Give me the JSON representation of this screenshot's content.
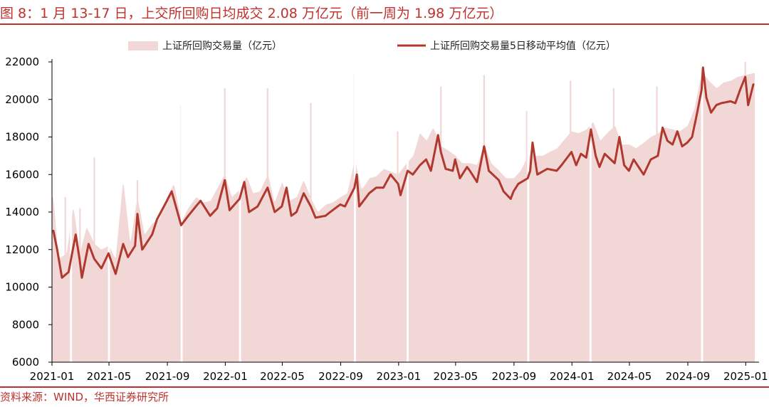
{
  "figure_title": "图 8：1 月 13-17 日，上交所回购日均成交 2.08 万亿元（前一周为 1.98 万亿元）",
  "source_note": "资料来源：WIND，华西证券研究所",
  "colors": {
    "bars": "#f2d7d7",
    "line": "#b0392f",
    "accent": "#c0312d"
  },
  "chart_data": {
    "type": "bar+line",
    "title": "",
    "xlabel": "",
    "ylabel": "",
    "ylim": [
      6000,
      22000
    ],
    "yticks": [
      "6000",
      "8000",
      "10000",
      "12000",
      "14000",
      "16000",
      "18000",
      "20000",
      "22000"
    ],
    "xlim": [
      "2021-01",
      "2025-01-17"
    ],
    "xticks": [
      "2021-01",
      "2021-05",
      "2021-09",
      "2022-01",
      "2022-05",
      "2022-09",
      "2023-01",
      "2023-05",
      "2023-09",
      "2024-01",
      "2024-05",
      "2024-09",
      "2025-01"
    ],
    "legend": {
      "placement": "top",
      "items": [
        "上证所回购交易量（亿元）",
        "上证所回购交易量5日移动平均值（亿元）"
      ]
    },
    "series": [
      {
        "name": "上证所回购交易量5日移动平均值（亿元）",
        "kind": "line",
        "points": [
          [
            "2021-01-04",
            13000
          ],
          [
            "2021-01-12",
            12000
          ],
          [
            "2021-01-22",
            10500
          ],
          [
            "2021-02-05",
            10800
          ],
          [
            "2021-02-20",
            12800
          ],
          [
            "2021-02-28",
            11500
          ],
          [
            "2021-03-05",
            10500
          ],
          [
            "2021-03-19",
            12300
          ],
          [
            "2021-03-31",
            11500
          ],
          [
            "2021-04-15",
            11000
          ],
          [
            "2021-04-30",
            11800
          ],
          [
            "2021-05-15",
            10700
          ],
          [
            "2021-05-31",
            12300
          ],
          [
            "2021-06-10",
            11600
          ],
          [
            "2021-06-25",
            12200
          ],
          [
            "2021-06-30",
            13900
          ],
          [
            "2021-07-10",
            12000
          ],
          [
            "2021-07-31",
            12800
          ],
          [
            "2021-08-10",
            13600
          ],
          [
            "2021-08-31",
            14600
          ],
          [
            "2021-09-10",
            15100
          ],
          [
            "2021-09-30",
            13300
          ],
          [
            "2021-10-15",
            13800
          ],
          [
            "2021-10-31",
            14300
          ],
          [
            "2021-11-10",
            14600
          ],
          [
            "2021-11-30",
            13800
          ],
          [
            "2021-12-15",
            14200
          ],
          [
            "2021-12-31",
            15700
          ],
          [
            "2022-01-10",
            14100
          ],
          [
            "2022-01-31",
            14700
          ],
          [
            "2022-02-10",
            15600
          ],
          [
            "2022-02-20",
            14000
          ],
          [
            "2022-03-10",
            14300
          ],
          [
            "2022-03-31",
            15300
          ],
          [
            "2022-04-15",
            14000
          ],
          [
            "2022-04-30",
            14300
          ],
          [
            "2022-05-10",
            15300
          ],
          [
            "2022-05-20",
            13800
          ],
          [
            "2022-05-31",
            14000
          ],
          [
            "2022-06-15",
            15000
          ],
          [
            "2022-06-30",
            14300
          ],
          [
            "2022-07-10",
            13700
          ],
          [
            "2022-07-31",
            13800
          ],
          [
            "2022-08-10",
            14000
          ],
          [
            "2022-08-31",
            14400
          ],
          [
            "2022-09-10",
            14300
          ],
          [
            "2022-09-30",
            15300
          ],
          [
            "2022-10-05",
            16000
          ],
          [
            "2022-10-10",
            14300
          ],
          [
            "2022-10-31",
            15000
          ],
          [
            "2022-11-15",
            15300
          ],
          [
            "2022-11-30",
            15300
          ],
          [
            "2022-12-15",
            16000
          ],
          [
            "2022-12-31",
            15500
          ],
          [
            "2023-01-05",
            14900
          ],
          [
            "2023-01-20",
            16200
          ],
          [
            "2023-01-31",
            16000
          ],
          [
            "2023-02-15",
            16500
          ],
          [
            "2023-02-28",
            16800
          ],
          [
            "2023-03-10",
            16200
          ],
          [
            "2023-03-25",
            18100
          ],
          [
            "2023-03-31",
            17200
          ],
          [
            "2023-04-10",
            16300
          ],
          [
            "2023-04-25",
            16200
          ],
          [
            "2023-04-30",
            16800
          ],
          [
            "2023-05-10",
            15800
          ],
          [
            "2023-05-25",
            16400
          ],
          [
            "2023-05-31",
            16200
          ],
          [
            "2023-06-15",
            15600
          ],
          [
            "2023-06-30",
            17500
          ],
          [
            "2023-07-10",
            16200
          ],
          [
            "2023-07-31",
            15700
          ],
          [
            "2023-08-10",
            15100
          ],
          [
            "2023-08-25",
            14700
          ],
          [
            "2023-08-31",
            15100
          ],
          [
            "2023-09-10",
            15500
          ],
          [
            "2023-09-30",
            15800
          ],
          [
            "2023-10-05",
            16200
          ],
          [
            "2023-10-10",
            17700
          ],
          [
            "2023-10-20",
            16000
          ],
          [
            "2023-11-10",
            16300
          ],
          [
            "2023-11-30",
            16200
          ],
          [
            "2023-12-10",
            16500
          ],
          [
            "2023-12-31",
            17200
          ],
          [
            "2024-01-10",
            16500
          ],
          [
            "2024-01-20",
            17100
          ],
          [
            "2024-01-31",
            16900
          ],
          [
            "2024-02-10",
            18400
          ],
          [
            "2024-02-20",
            17000
          ],
          [
            "2024-02-28",
            16400
          ],
          [
            "2024-03-10",
            17100
          ],
          [
            "2024-03-31",
            16600
          ],
          [
            "2024-04-10",
            18000
          ],
          [
            "2024-04-20",
            16500
          ],
          [
            "2024-04-30",
            16200
          ],
          [
            "2024-05-10",
            16800
          ],
          [
            "2024-05-31",
            16000
          ],
          [
            "2024-06-15",
            16800
          ],
          [
            "2024-06-30",
            17000
          ],
          [
            "2024-07-10",
            18500
          ],
          [
            "2024-07-20",
            17800
          ],
          [
            "2024-07-31",
            17600
          ],
          [
            "2024-08-10",
            18300
          ],
          [
            "2024-08-20",
            17500
          ],
          [
            "2024-08-31",
            17700
          ],
          [
            "2024-09-10",
            18000
          ],
          [
            "2024-09-20",
            19200
          ],
          [
            "2024-09-30",
            20500
          ],
          [
            "2024-10-03",
            21700
          ],
          [
            "2024-10-10",
            20100
          ],
          [
            "2024-10-20",
            19300
          ],
          [
            "2024-10-31",
            19700
          ],
          [
            "2024-11-10",
            19800
          ],
          [
            "2024-11-30",
            19900
          ],
          [
            "2024-12-10",
            19800
          ],
          [
            "2024-12-20",
            20500
          ],
          [
            "2024-12-31",
            21200
          ],
          [
            "2025-01-06",
            19700
          ],
          [
            "2025-01-12",
            20300
          ],
          [
            "2025-01-17",
            20800
          ]
        ]
      },
      {
        "name": "上证所回购交易量（亿元）",
        "kind": "bar",
        "note": "daily trading volume; envelope approximates the plotted daily bars",
        "points": [
          [
            "2021-01-04",
            14800
          ],
          [
            "2021-01-15",
            11500
          ],
          [
            "2021-02-01",
            11800
          ],
          [
            "2021-02-15",
            14300
          ],
          [
            "2021-03-01",
            11800
          ],
          [
            "2021-03-15",
            13200
          ],
          [
            "2021-04-01",
            12300
          ],
          [
            "2021-04-15",
            12000
          ],
          [
            "2021-05-01",
            12200
          ],
          [
            "2021-05-15",
            11500
          ],
          [
            "2021-05-31",
            15700
          ],
          [
            "2021-06-15",
            12300
          ],
          [
            "2021-06-30",
            14800
          ],
          [
            "2021-07-15",
            12800
          ],
          [
            "2021-08-01",
            13400
          ],
          [
            "2021-08-15",
            13600
          ],
          [
            "2021-09-01",
            14800
          ],
          [
            "2021-09-15",
            15500
          ],
          [
            "2021-10-01",
            13500
          ],
          [
            "2021-10-15",
            14200
          ],
          [
            "2021-11-01",
            14800
          ],
          [
            "2021-11-15",
            14500
          ],
          [
            "2021-12-01",
            14600
          ],
          [
            "2021-12-31",
            16000
          ],
          [
            "2022-01-15",
            14800
          ],
          [
            "2022-02-01",
            15200
          ],
          [
            "2022-02-15",
            15900
          ],
          [
            "2022-03-01",
            15000
          ],
          [
            "2022-03-15",
            15100
          ],
          [
            "2022-04-01",
            16000
          ],
          [
            "2022-04-15",
            14500
          ],
          [
            "2022-05-01",
            15600
          ],
          [
            "2022-05-15",
            14600
          ],
          [
            "2022-06-01",
            14800
          ],
          [
            "2022-06-15",
            15700
          ],
          [
            "2022-07-01",
            14700
          ],
          [
            "2022-07-15",
            14000
          ],
          [
            "2022-08-01",
            14400
          ],
          [
            "2022-08-15",
            14500
          ],
          [
            "2022-09-01",
            14800
          ],
          [
            "2022-09-15",
            15000
          ],
          [
            "2022-10-01",
            16800
          ],
          [
            "2022-10-15",
            15200
          ],
          [
            "2022-11-01",
            15800
          ],
          [
            "2022-11-15",
            15900
          ],
          [
            "2022-12-01",
            16300
          ],
          [
            "2022-12-31",
            16000
          ],
          [
            "2023-01-15",
            16500
          ],
          [
            "2023-02-01",
            17000
          ],
          [
            "2023-02-15",
            18200
          ],
          [
            "2023-03-01",
            17800
          ],
          [
            "2023-03-15",
            18500
          ],
          [
            "2023-04-01",
            17500
          ],
          [
            "2023-04-15",
            17300
          ],
          [
            "2023-05-01",
            17000
          ],
          [
            "2023-05-15",
            16600
          ],
          [
            "2023-06-01",
            16600
          ],
          [
            "2023-06-15",
            16500
          ],
          [
            "2023-07-01",
            17600
          ],
          [
            "2023-07-15",
            16600
          ],
          [
            "2023-08-01",
            16200
          ],
          [
            "2023-08-15",
            15800
          ],
          [
            "2023-09-01",
            15800
          ],
          [
            "2023-09-15",
            16200
          ],
          [
            "2023-10-01",
            17000
          ],
          [
            "2023-10-15",
            17000
          ],
          [
            "2023-11-01",
            17000
          ],
          [
            "2023-11-15",
            17200
          ],
          [
            "2023-12-01",
            17400
          ],
          [
            "2023-12-31",
            18300
          ],
          [
            "2024-01-15",
            18200
          ],
          [
            "2024-02-01",
            18400
          ],
          [
            "2024-02-15",
            18800
          ],
          [
            "2024-03-01",
            17800
          ],
          [
            "2024-03-15",
            18200
          ],
          [
            "2024-04-01",
            18600
          ],
          [
            "2024-04-15",
            17600
          ],
          [
            "2024-05-01",
            17600
          ],
          [
            "2024-05-15",
            17400
          ],
          [
            "2024-06-01",
            17700
          ],
          [
            "2024-06-15",
            18000
          ],
          [
            "2024-07-01",
            18200
          ],
          [
            "2024-07-15",
            18500
          ],
          [
            "2024-08-01",
            18400
          ],
          [
            "2024-08-15",
            18300
          ],
          [
            "2024-09-01",
            18600
          ],
          [
            "2024-09-15",
            19500
          ],
          [
            "2024-10-01",
            21500
          ],
          [
            "2024-10-15",
            21000
          ],
          [
            "2024-11-01",
            20600
          ],
          [
            "2024-11-15",
            20900
          ],
          [
            "2024-12-01",
            21000
          ],
          [
            "2024-12-15",
            21200
          ],
          [
            "2025-01-01",
            21300
          ],
          [
            "2025-01-17",
            21400
          ]
        ],
        "spikes": [
          [
            "2021-01-29",
            14800
          ],
          [
            "2021-03-01",
            14200
          ],
          [
            "2021-03-31",
            16900
          ],
          [
            "2021-06-30",
            15700
          ],
          [
            "2021-09-30",
            19700
          ],
          [
            "2021-12-31",
            20600
          ],
          [
            "2022-03-31",
            20600
          ],
          [
            "2022-06-30",
            19800
          ],
          [
            "2022-09-30",
            21300
          ],
          [
            "2022-12-30",
            18300
          ],
          [
            "2023-03-31",
            20700
          ],
          [
            "2023-06-30",
            21300
          ],
          [
            "2023-09-28",
            19400
          ],
          [
            "2023-12-29",
            21000
          ],
          [
            "2024-03-29",
            20600
          ],
          [
            "2024-06-28",
            20700
          ],
          [
            "2024-09-30",
            22000
          ],
          [
            "2024-12-31",
            22000
          ]
        ],
        "gaps": [
          "2021-02-10",
          "2021-05-01",
          "2021-10-01",
          "2022-02-01",
          "2022-10-01",
          "2023-01-20",
          "2023-10-01",
          "2024-02-09",
          "2024-10-01"
        ]
      }
    ]
  }
}
